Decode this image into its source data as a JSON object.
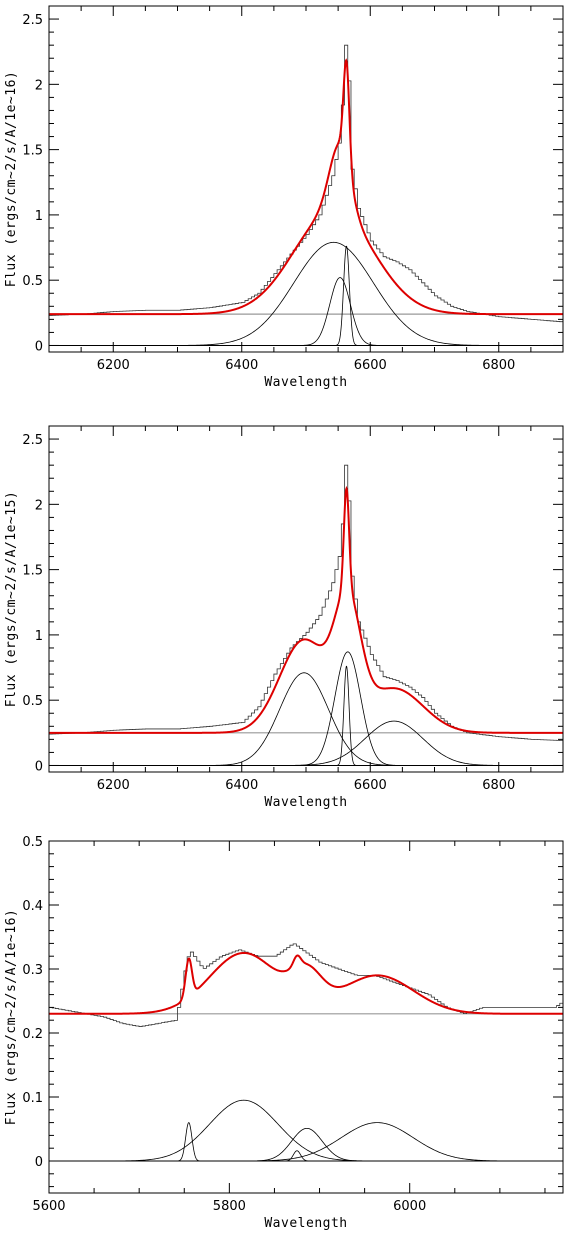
{
  "chart_data": [
    {
      "type": "line",
      "xlabel": "Wavelength",
      "ylabel": "Flux (ergs/cm~2/s/A/1e~16)",
      "xlim": [
        6100,
        6900
      ],
      "ylim": [
        -0.05,
        2.6
      ],
      "xticks": [
        6200,
        6400,
        6600,
        6800
      ],
      "yticks": [
        0,
        0.5,
        1,
        1.5,
        2,
        2.5
      ],
      "ytick_labels": [
        "0",
        "0.5",
        "1",
        "1.5",
        "2",
        "2.5"
      ],
      "continuum": 0.24,
      "components": [
        {
          "center": 6543,
          "sigma": 62,
          "amp": 0.79
        },
        {
          "center": 6553,
          "sigma": 16,
          "amp": 0.52
        },
        {
          "center": 6563,
          "sigma": 4.5,
          "amp": 0.76
        }
      ],
      "observed": {
        "x": [
          6100,
          6150,
          6200,
          6250,
          6300,
          6350,
          6400,
          6425,
          6450,
          6475,
          6500,
          6520,
          6540,
          6550,
          6556,
          6560,
          6563,
          6566,
          6570,
          6580,
          6600,
          6620,
          6640,
          6660,
          6680,
          6700,
          6725,
          6750,
          6800,
          6850,
          6900
        ],
        "y": [
          0.23,
          0.24,
          0.26,
          0.27,
          0.27,
          0.29,
          0.33,
          0.4,
          0.55,
          0.7,
          0.85,
          1.0,
          1.3,
          1.55,
          1.9,
          2.3,
          2.28,
          1.9,
          1.35,
          1.05,
          0.8,
          0.68,
          0.64,
          0.58,
          0.48,
          0.38,
          0.3,
          0.26,
          0.22,
          0.2,
          0.18
        ]
      },
      "colors": {
        "fit": "#dd0000",
        "continuum": "#999999",
        "components": "#000000",
        "observed": "#333333"
      }
    },
    {
      "type": "line",
      "xlabel": "Wavelength",
      "ylabel": "Flux (ergs/cm~2/s/A/1e~15)",
      "xlim": [
        6100,
        6900
      ],
      "ylim": [
        -0.05,
        2.6
      ],
      "xticks": [
        6200,
        6400,
        6600,
        6800
      ],
      "yticks": [
        0,
        0.5,
        1,
        1.5,
        2,
        2.5
      ],
      "ytick_labels": [
        "0",
        "0.5",
        "1",
        "1.5",
        "2",
        "2.5"
      ],
      "continuum": 0.25,
      "components": [
        {
          "center": 6497,
          "sigma": 38,
          "amp": 0.71
        },
        {
          "center": 6565,
          "sigma": 20,
          "amp": 0.87
        },
        {
          "center": 6563,
          "sigma": 4,
          "amp": 0.76
        },
        {
          "center": 6637,
          "sigma": 45,
          "amp": 0.34
        }
      ],
      "observed": {
        "x": [
          6100,
          6150,
          6200,
          6250,
          6300,
          6350,
          6400,
          6425,
          6450,
          6475,
          6500,
          6520,
          6540,
          6550,
          6556,
          6560,
          6563,
          6566,
          6570,
          6580,
          6600,
          6620,
          6640,
          6660,
          6680,
          6700,
          6725,
          6750,
          6800,
          6850,
          6900
        ],
        "y": [
          0.24,
          0.25,
          0.27,
          0.28,
          0.28,
          0.3,
          0.33,
          0.45,
          0.7,
          0.9,
          1.02,
          1.15,
          1.4,
          1.6,
          1.9,
          2.3,
          2.28,
          1.9,
          1.45,
          1.1,
          0.85,
          0.68,
          0.65,
          0.6,
          0.52,
          0.4,
          0.3,
          0.25,
          0.22,
          0.2,
          0.19
        ]
      },
      "colors": {
        "fit": "#dd0000",
        "continuum": "#999999",
        "components": "#000000",
        "observed": "#333333"
      }
    },
    {
      "type": "line",
      "xlabel": "Wavelength",
      "ylabel": "Flux (ergs/cm~2/s/A/1e~16)",
      "xlim": [
        5600,
        6170
      ],
      "ylim": [
        -0.05,
        0.5
      ],
      "xticks": [
        5600,
        5800,
        6000
      ],
      "yticks": [
        0,
        0.1,
        0.2,
        0.3,
        0.4,
        0.5
      ],
      "ytick_labels": [
        "0",
        "0.1",
        "0.2",
        "0.3",
        "0.4",
        "0.5"
      ],
      "continuum": 0.23,
      "components": [
        {
          "center": 5755,
          "sigma": 3.5,
          "amp": 0.06
        },
        {
          "center": 5816,
          "sigma": 38,
          "amp": 0.095
        },
        {
          "center": 5875,
          "sigma": 4,
          "amp": 0.016
        },
        {
          "center": 5886,
          "sigma": 17,
          "amp": 0.051
        },
        {
          "center": 5964,
          "sigma": 40,
          "amp": 0.06
        }
      ],
      "observed": {
        "x": [
          5600,
          5620,
          5640,
          5660,
          5680,
          5700,
          5720,
          5740,
          5750,
          5755,
          5760,
          5770,
          5790,
          5810,
          5830,
          5850,
          5870,
          5880,
          5900,
          5920,
          5940,
          5960,
          5980,
          6000,
          6020,
          6040,
          6060,
          6080,
          6100,
          6120,
          6140,
          6160,
          6170
        ],
        "y": [
          0.24,
          0.235,
          0.23,
          0.225,
          0.215,
          0.21,
          0.215,
          0.22,
          0.3,
          0.33,
          0.32,
          0.3,
          0.32,
          0.33,
          0.32,
          0.32,
          0.34,
          0.33,
          0.31,
          0.3,
          0.29,
          0.29,
          0.28,
          0.27,
          0.26,
          0.24,
          0.23,
          0.24,
          0.24,
          0.24,
          0.24,
          0.24,
          0.25
        ]
      },
      "colors": {
        "fit": "#dd0000",
        "continuum": "#999999",
        "components": "#000000",
        "observed": "#333333"
      }
    }
  ]
}
